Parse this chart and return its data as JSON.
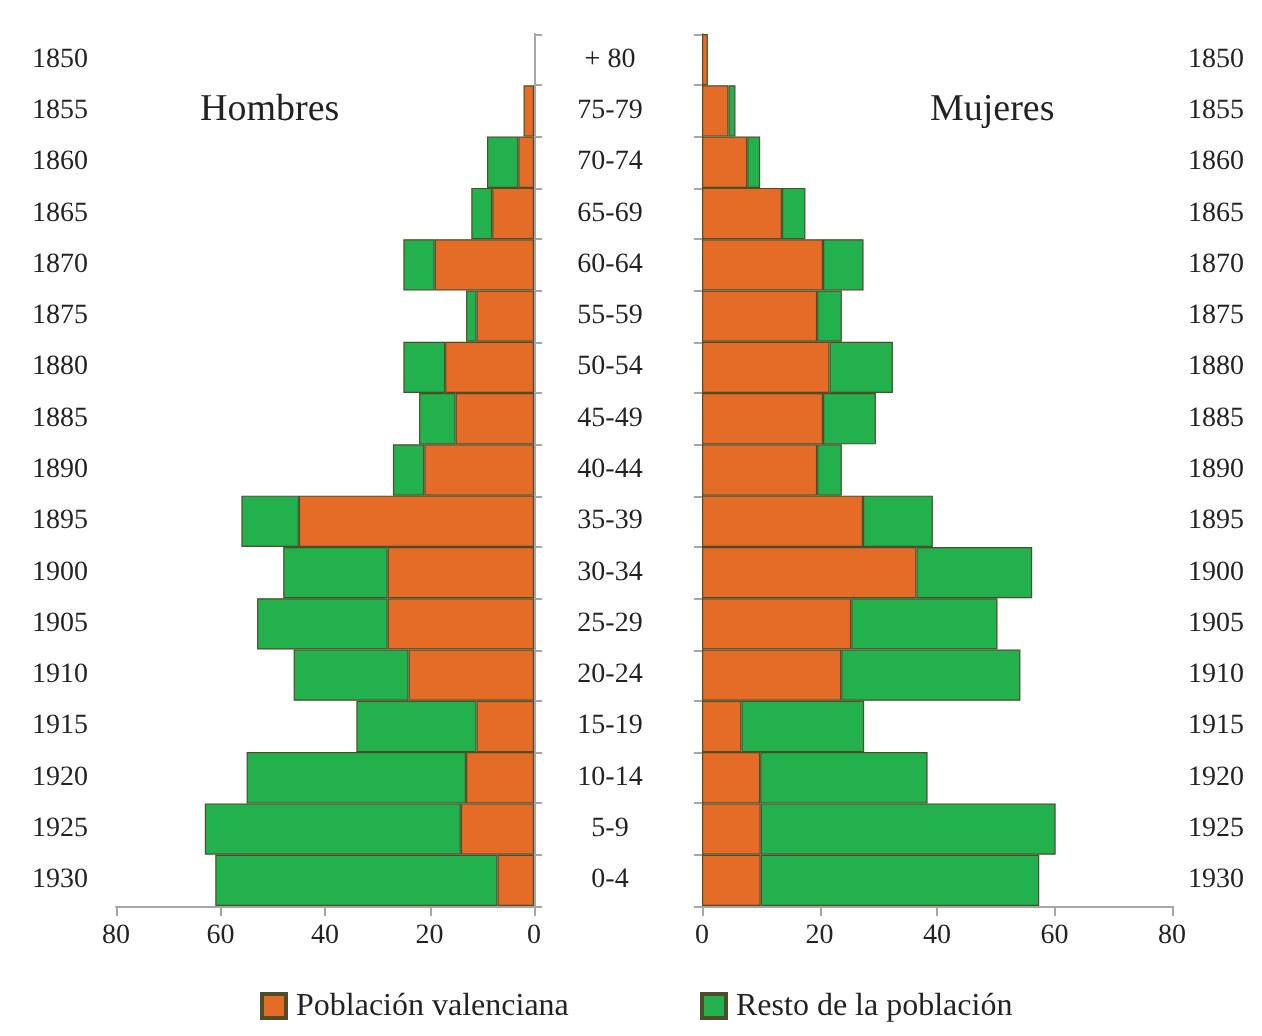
{
  "chart_data": [
    {
      "type": "bar",
      "title": "Hombres",
      "orientation": "horizontal",
      "stacked": true,
      "legend": "bottom",
      "grid": false,
      "categories": [
        "1850",
        "1855",
        "1860",
        "1865",
        "1870",
        "1875",
        "1880",
        "1885",
        "1890",
        "1895",
        "1900",
        "1905",
        "1910",
        "1915",
        "1920",
        "1925",
        "1930"
      ],
      "xlim": [
        80,
        0
      ],
      "xticks": [
        0,
        20,
        40,
        60,
        80
      ],
      "series": [
        {
          "name": "Población valenciana",
          "color": "#e46c26",
          "values": [
            0,
            2,
            3,
            8,
            19,
            11,
            17,
            15,
            21,
            45,
            28,
            28,
            24,
            11,
            13,
            14,
            7
          ]
        },
        {
          "color": "#22b14c",
          "values": [
            0,
            0,
            6,
            4,
            6,
            2,
            8,
            7,
            6,
            11,
            20,
            25,
            22,
            23,
            42,
            49,
            54
          ]
        }
      ]
    },
    {
      "type": "bar",
      "title": "Mujeres",
      "orientation": "horizontal",
      "stacked": true,
      "legend": "bottom",
      "grid": false,
      "categories": [
        "+ 80",
        "75-79",
        "70-74",
        "65-69",
        "60-64",
        "55-59",
        "50-54",
        "45-49",
        "40-44",
        "35-39",
        "30-34",
        "25-29",
        "20-24",
        "15-19",
        "10-14",
        "5-9",
        "0-4"
      ],
      "y2_categories": [
        "1850",
        "1855",
        "1860",
        "1865",
        "1870",
        "1875",
        "1880",
        "1885",
        "1890",
        "1895",
        "1900",
        "1905",
        "1910",
        "1915",
        "1920",
        "1925",
        "1930"
      ],
      "xlim": [
        0,
        80
      ],
      "xticks": [
        0,
        20,
        40,
        60,
        80
      ],
      "series": [
        {
          "color": "#e46c26",
          "values": [
            1,
            4.5,
            7.7,
            13.6,
            20.6,
            19.6,
            21.7,
            20.6,
            19.6,
            27.4,
            36.5,
            25.4,
            23.7,
            6.7,
            9.9,
            10,
            10
          ]
        },
        {
          "name": "Resto de la población",
          "color": "#22b14c",
          "values": [
            0,
            1.2,
            2.2,
            4,
            6.9,
            4.2,
            10.8,
            9,
            4.2,
            11.9,
            19.7,
            24.9,
            30.5,
            20.9,
            28.5,
            50.2,
            47.4
          ]
        }
      ]
    }
  ]
}
